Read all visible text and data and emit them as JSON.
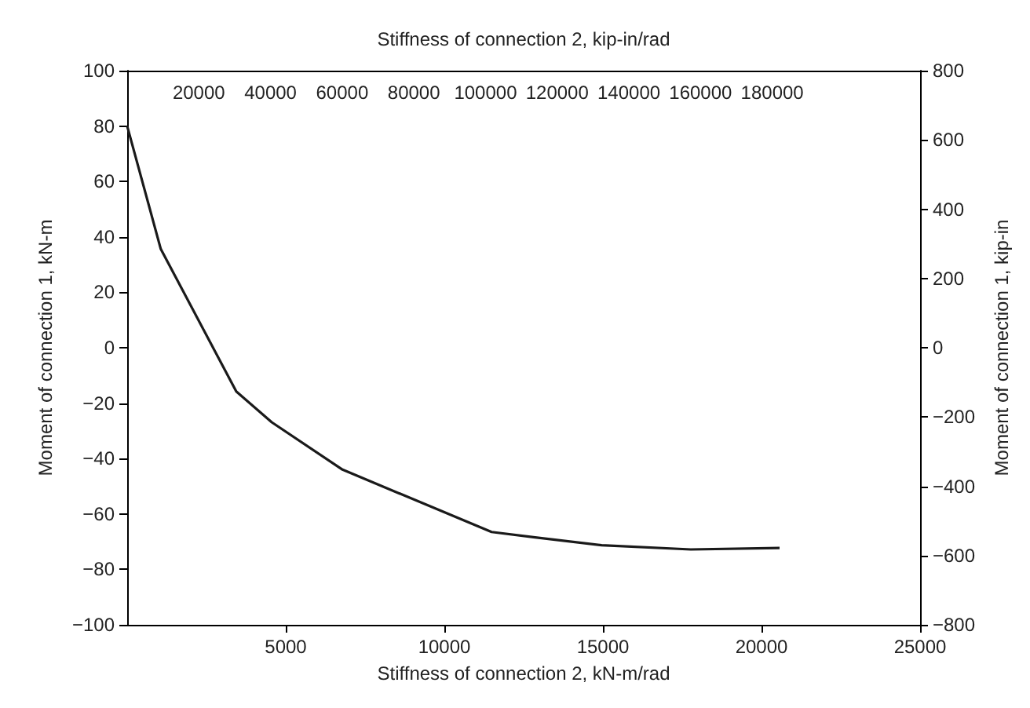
{
  "chart_data": {
    "type": "line",
    "xlabel": "Stiffness of connection 2, kN-m/rad",
    "x2label": "Stiffness of connection 2, kip-in/rad",
    "ylabel": "Moment of connection 1, kN-m",
    "y2label": "Moment of connection 1, kip-in",
    "x": [
      0,
      1060,
      3440,
      4560,
      6790,
      11490,
      12810,
      14960,
      17770,
      20570
    ],
    "series": [
      {
        "color": "#1a1a1a",
        "values": [
          80,
          35.6,
          -15.8,
          -26.9,
          -44,
          -66.5,
          -68.4,
          -71.3,
          -72.8,
          -72.3
        ]
      }
    ],
    "xlim": [
      0,
      25000
    ],
    "xticks": [
      5000,
      10000,
      15000,
      20000,
      25000
    ],
    "x2lim": [
      0,
      221270
    ],
    "x2ticks": [
      20000,
      40000,
      60000,
      80000,
      100000,
      120000,
      140000,
      160000,
      180000
    ],
    "ylim": [
      -100,
      100
    ],
    "yticks": [
      -100,
      -80,
      -60,
      -40,
      -20,
      0,
      20,
      40,
      60,
      80,
      100
    ],
    "y2lim": [
      -800,
      800
    ],
    "y2ticks": [
      -800,
      -600,
      -400,
      -200,
      0,
      200,
      400,
      600,
      800
    ],
    "grid": false,
    "marker": "none",
    "line_style": "solid"
  }
}
